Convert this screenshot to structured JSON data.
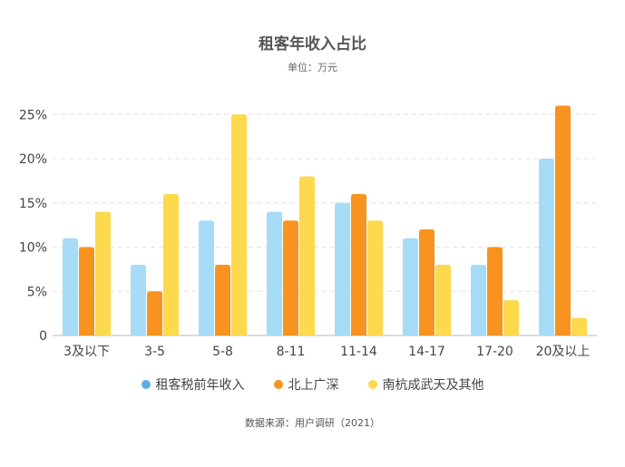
{
  "chart_data": {
    "type": "bar",
    "title": "租客年收入占比",
    "subtitle": "单位：万元",
    "source": "数据来源：用户调研（2021）",
    "categories": [
      "3及以下",
      "3-5",
      "5-8",
      "8-11",
      "11-14",
      "14-17",
      "17-20",
      "20及以上"
    ],
    "series": [
      {
        "name": "租客税前年收入",
        "color": "#a6dcf7",
        "legend_color": "#5aaee9",
        "values": [
          11,
          8,
          13,
          14,
          15,
          11,
          8,
          20
        ]
      },
      {
        "name": "北上广深",
        "color": "#f7931e",
        "legend_color": "#f7931e",
        "values": [
          10,
          5,
          8,
          13,
          16,
          12,
          10,
          26
        ]
      },
      {
        "name": "南杭成武天及其他",
        "color": "#fdd94e",
        "legend_color": "#fdd94e",
        "values": [
          14,
          16,
          25,
          18,
          13,
          8,
          4,
          2
        ]
      }
    ],
    "y_ticks": [
      "0",
      "5%",
      "10%",
      "15%",
      "20%",
      "25%"
    ],
    "ylim": [
      0,
      26
    ],
    "grid": true,
    "legend_position": "bottom"
  }
}
